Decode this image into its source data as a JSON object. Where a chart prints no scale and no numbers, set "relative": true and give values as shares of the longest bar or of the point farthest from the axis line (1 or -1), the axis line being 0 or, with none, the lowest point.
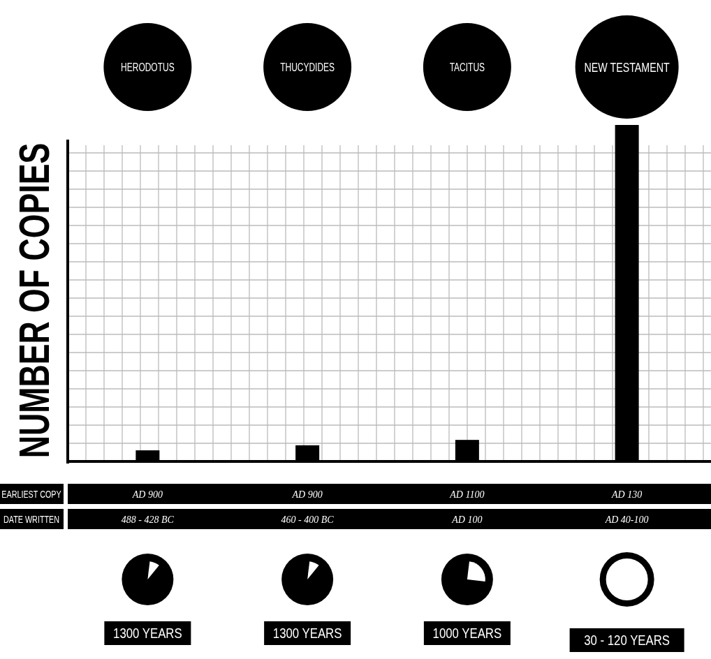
{
  "chart_data": {
    "type": "bar",
    "relative": true,
    "grid": true,
    "ylabel": "NUMBER OF COPIES",
    "color": "#000000",
    "categories": [
      "HERODOTUS",
      "THUCYDIDES",
      "TACITUS",
      "NEW TESTAMENT"
    ],
    "values": [
      0.033,
      0.048,
      0.064,
      1
    ],
    "annotations": [
      "EARLIEST COPY",
      "DATE WRITTEN",
      "AD 900",
      "488 - 428 BC",
      "1300 YEARS",
      "AD 900",
      "460 - 400 BC",
      "1300 YEARS",
      "AD 1100",
      "AD 100",
      "1000 YEARS",
      "AD 130",
      "AD 40-100",
      "30 - 120 YEARS"
    ]
  }
}
